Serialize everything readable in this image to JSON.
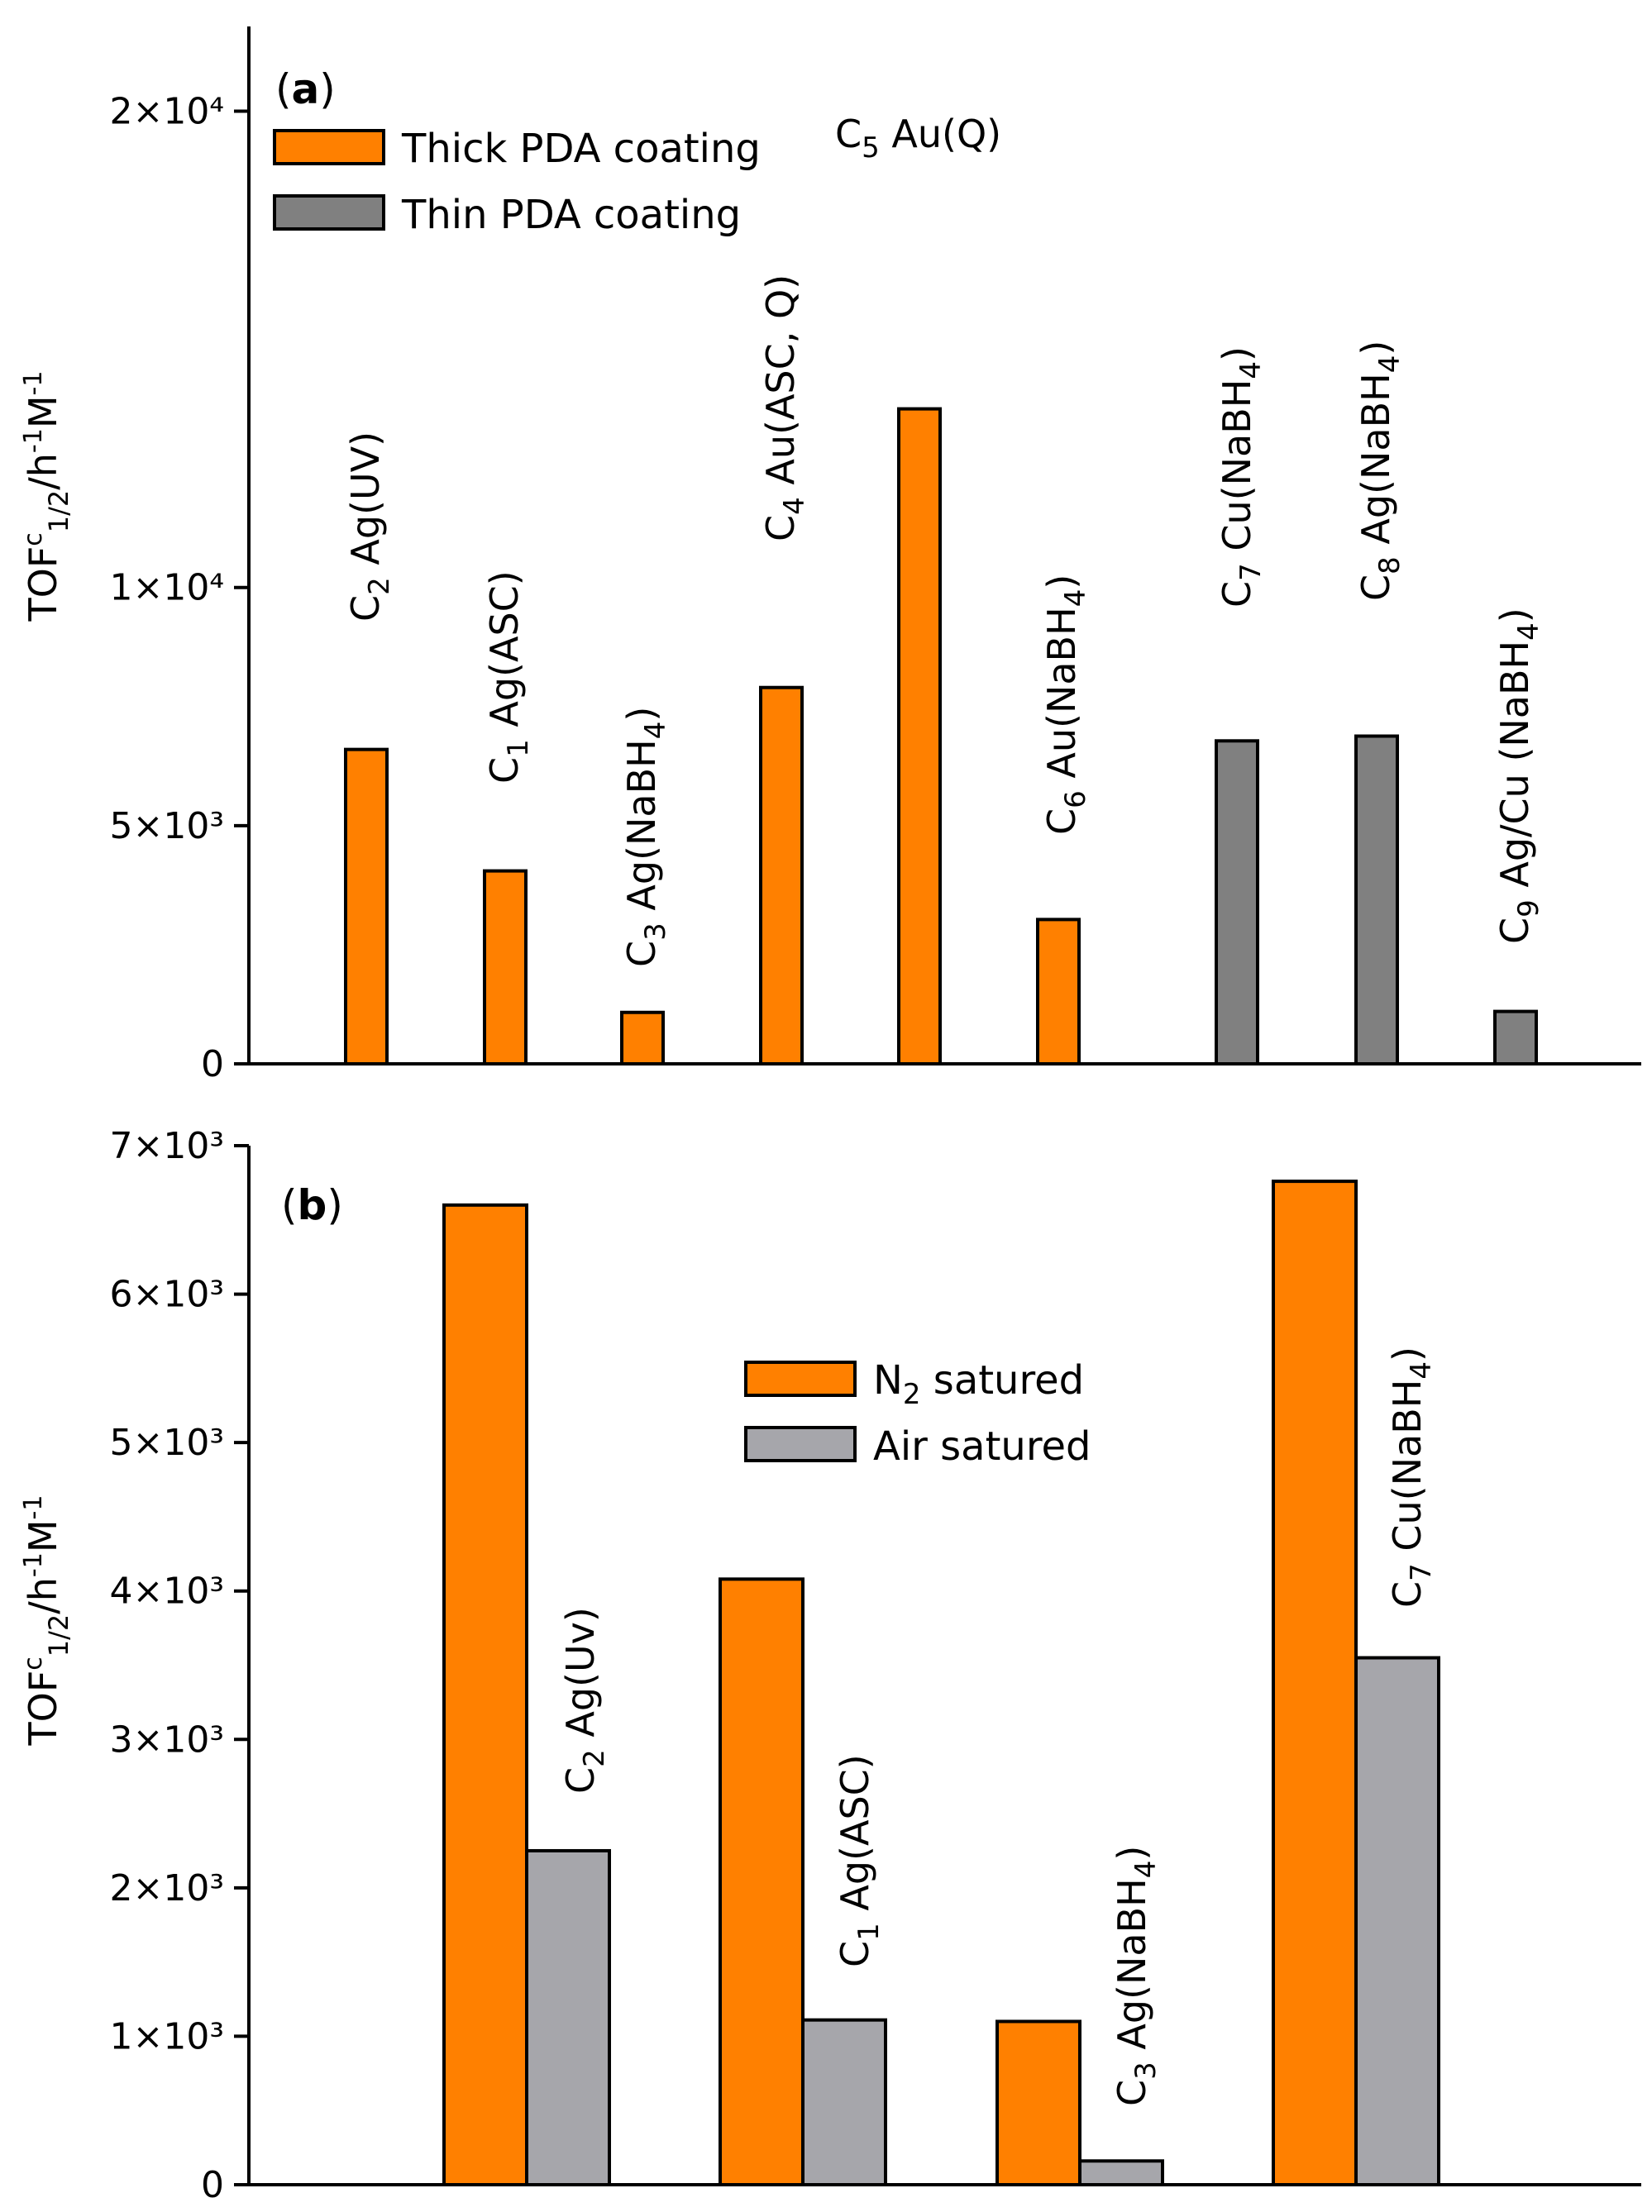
{
  "chart_data": [
    {
      "id": "a",
      "type": "bar",
      "panel_label": "a",
      "ylabel": "TOF^c_1/2/h^-1M^-1",
      "ylim": [
        0,
        21500
      ],
      "yticks": [
        {
          "value": 0,
          "label": "0"
        },
        {
          "value": 5000,
          "label": "5×10³"
        },
        {
          "value": 10000,
          "label": "1×10⁴"
        },
        {
          "value": 20000,
          "label": "2×10⁴"
        }
      ],
      "legend": [
        {
          "name": "Thick PDA coating",
          "color": "#ff8000"
        },
        {
          "name": "Thin PDA coating",
          "color": "#808080"
        }
      ],
      "bars": [
        {
          "label": "C2 Ag(UV)",
          "series": "Thick PDA coating",
          "value": 6600
        },
        {
          "label": "C1 Ag(ASC)",
          "series": "Thick PDA coating",
          "value": 4050
        },
        {
          "label": "C3 Ag(NaBH4)",
          "series": "Thick PDA coating",
          "value": 1080
        },
        {
          "label": "C4 Au(ASC, Q)",
          "series": "Thick PDA coating",
          "value": 7900
        },
        {
          "label": "C5 Au(Q)",
          "series": "Thick PDA coating",
          "value": 13750
        },
        {
          "label": "C6 Au(NaBH4)",
          "series": "Thick PDA coating",
          "value": 3030
        },
        {
          "label": "C7 Cu(NaBH4)",
          "series": "Thin PDA coating",
          "value": 6780
        },
        {
          "label": "C8 Ag(NaBH4)",
          "series": "Thin PDA coating",
          "value": 6880
        },
        {
          "label": "C9 Ag/Cu (NaBH4)",
          "series": "Thin PDA coating",
          "value": 1100
        }
      ]
    },
    {
      "id": "b",
      "type": "bar",
      "panel_label": "b",
      "ylabel": "TOF^c_1/2/h^-1M^-1",
      "ylim": [
        0,
        7000
      ],
      "yticks": [
        {
          "value": 0,
          "label": "0"
        },
        {
          "value": 1000,
          "label": "1×10³"
        },
        {
          "value": 2000,
          "label": "2×10³"
        },
        {
          "value": 3000,
          "label": "3×10³"
        },
        {
          "value": 4000,
          "label": "4×10³"
        },
        {
          "value": 5000,
          "label": "5×10³"
        },
        {
          "value": 6000,
          "label": "6×10³"
        },
        {
          "value": 7000,
          "label": "7×10³"
        }
      ],
      "legend": [
        {
          "name": "N2 satured",
          "color": "#ff8000"
        },
        {
          "name": "Air satured",
          "color": "#a6a6ab"
        }
      ],
      "categories": [
        "C2 Ag(Uv)",
        "C1 Ag(ASC)",
        "C3 Ag(NaBH4)",
        "C7 Cu(NaBH4)"
      ],
      "series": [
        {
          "name": "N2 satured",
          "values": [
            6600,
            4080,
            1100,
            6760
          ]
        },
        {
          "name": "Air satured",
          "values": [
            2250,
            1110,
            160,
            3550
          ]
        }
      ]
    }
  ]
}
